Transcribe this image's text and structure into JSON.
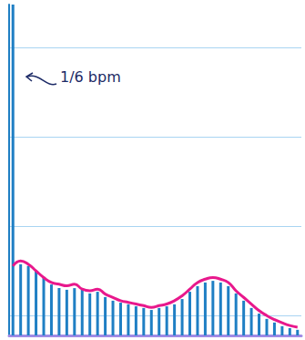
{
  "chart_data": {
    "type": "bar",
    "annotation": "1/6 bpm",
    "categories": [
      null,
      null,
      null,
      null,
      null,
      null,
      null,
      null,
      null,
      null,
      null,
      null,
      null,
      null,
      null,
      null,
      null,
      null,
      null,
      null,
      null,
      null,
      null,
      null,
      null,
      null,
      null,
      null,
      null,
      null,
      null,
      null,
      null,
      null,
      null,
      null,
      null,
      null
    ],
    "series": [
      {
        "type": "bar",
        "color": "#1f7fc4",
        "values": [
          100,
          21.5,
          21,
          19.3,
          17.4,
          15.4,
          14.3,
          13.8,
          14.3,
          13.8,
          12.7,
          13.2,
          11.6,
          10.5,
          9.9,
          9.4,
          8.8,
          8.3,
          7.7,
          8.3,
          8.8,
          9.4,
          11,
          13.2,
          14.9,
          16,
          16.5,
          16,
          14.9,
          12.7,
          10.5,
          8.3,
          6.6,
          5,
          3.9,
          2.8,
          2.2,
          1.7
        ]
      },
      {
        "type": "line",
        "color": "#e8188c",
        "line_style": "solid",
        "marker": "none",
        "values": [
          21,
          22.5,
          21.5,
          19.5,
          17.5,
          16,
          15.5,
          15,
          15.5,
          14,
          13.5,
          14,
          12.5,
          11.5,
          10.5,
          10,
          9.5,
          9,
          8.5,
          9,
          9.5,
          10.5,
          12,
          14,
          16,
          17,
          17.5,
          17,
          16,
          13.5,
          11.5,
          9.5,
          7.5,
          6,
          4.8,
          3.8,
          3,
          2.5
        ]
      }
    ],
    "ylim": [
      0,
      100
    ],
    "yticks": [
      6,
      33,
      60,
      87
    ],
    "grid": true,
    "tick_labels": false
  }
}
